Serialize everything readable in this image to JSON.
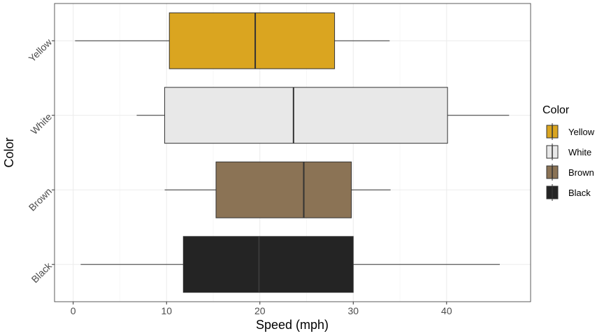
{
  "chart_data": {
    "type": "boxplot",
    "orientation": "horizontal",
    "xlabel": "Speed (mph)",
    "ylabel": "Color",
    "xlim": [
      -2,
      49
    ],
    "x_ticks": [
      0,
      10,
      20,
      30,
      40
    ],
    "categories": [
      "Black",
      "Brown",
      "White",
      "Yellow"
    ],
    "series": [
      {
        "name": "Black",
        "color": "#242424",
        "whisker_low": 0.8,
        "q1": 11.8,
        "median": 19.9,
        "q3": 30.0,
        "whisker_high": 45.7
      },
      {
        "name": "Brown",
        "color": "#8b7355",
        "whisker_low": 9.8,
        "q1": 15.3,
        "median": 24.7,
        "q3": 29.8,
        "whisker_high": 34.0
      },
      {
        "name": "White",
        "color": "#e8e8e8",
        "whisker_low": 6.8,
        "q1": 9.8,
        "median": 23.6,
        "q3": 40.1,
        "whisker_high": 46.7
      },
      {
        "name": "Yellow",
        "color": "#daa520",
        "whisker_low": 0.2,
        "q1": 10.3,
        "median": 19.5,
        "q3": 28.0,
        "whisker_high": 33.9
      }
    ],
    "grid": true,
    "legend": {
      "title": "Color",
      "placement": "right",
      "items": [
        "Yellow",
        "White",
        "Brown",
        "Black"
      ]
    }
  }
}
